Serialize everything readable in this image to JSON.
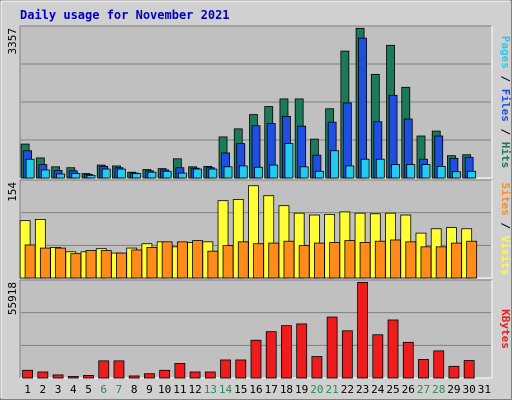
{
  "chart_data": {
    "type": "bar",
    "title": "Daily usage for November 2021",
    "days": [
      "1",
      "2",
      "3",
      "4",
      "5",
      "6",
      "7",
      "8",
      "9",
      "10",
      "11",
      "12",
      "13",
      "14",
      "15",
      "16",
      "17",
      "18",
      "19",
      "20",
      "21",
      "22",
      "23",
      "24",
      "25",
      "26",
      "27",
      "28",
      "29",
      "30",
      "31"
    ],
    "weekend_days": [
      "6",
      "7",
      "13",
      "14",
      "20",
      "21",
      "27",
      "28"
    ],
    "colors": {
      "background": "#d0d0d0",
      "plot": "#c0c0c0",
      "title": "#0000c0",
      "pages": "#1a7a5a",
      "files": "#1f4fe0",
      "hits": "#22ccee",
      "visits": "#ffff33",
      "sites": "#ff8c1a",
      "kbytes": "#ee1c1c",
      "weekend_label": "#2a8a55",
      "weekday_label": "#000000"
    },
    "panels": [
      {
        "name": "hits_files_pages",
        "max_label": "3357",
        "ylim": [
          0,
          3357
        ],
        "legend": [
          {
            "text": "Pages",
            "color": "#22ccee"
          },
          {
            "text": " / ",
            "color": "#000000"
          },
          {
            "text": "Files",
            "color": "#1f4fe0"
          },
          {
            "text": " / ",
            "color": "#000000"
          },
          {
            "text": "Hits",
            "color": "#1a7a5a"
          }
        ],
        "series": [
          {
            "name": "Hits",
            "color": "#1a7a5a",
            "values": [
              760,
              450,
              250,
              230,
              100,
              290,
              270,
              130,
              190,
              210,
              430,
              250,
              260,
              920,
              1100,
              1420,
              1600,
              1770,
              1770,
              870,
              1550,
              2840,
              3350,
              2320,
              2970,
              2030,
              940,
              1050,
              500,
              520,
              null
            ]
          },
          {
            "name": "Files",
            "color": "#1f4fe0",
            "values": [
              610,
              300,
              170,
              160,
              80,
              260,
              230,
              110,
              160,
              180,
              230,
              220,
              230,
              560,
              770,
              1170,
              1220,
              1380,
              1160,
              510,
              1250,
              1680,
              3130,
              1260,
              1850,
              1320,
              420,
              940,
              440,
              460,
              null
            ]
          },
          {
            "name": "Pages",
            "color": "#22ccee",
            "values": [
              420,
              180,
              90,
              100,
              60,
              200,
              200,
              100,
              130,
              150,
              110,
              200,
              200,
              250,
              270,
              240,
              290,
              770,
              250,
              150,
              610,
              270,
              420,
              420,
              300,
              300,
              300,
              260,
              140,
              150,
              null
            ]
          }
        ]
      },
      {
        "name": "visits_sites",
        "max_label": "154",
        "ylim": [
          0,
          154
        ],
        "legend": [
          {
            "text": "Sites",
            "color": "#ff8c1a"
          },
          {
            "text": " / ",
            "color": "#000000"
          },
          {
            "text": "Visits",
            "color": "#ffff33"
          }
        ],
        "series": [
          {
            "name": "Visits",
            "color": "#ffff33",
            "values": [
              92,
              94,
              49,
              42,
              42,
              47,
              40,
              48,
              55,
              58,
              50,
              57,
              58,
              124,
              126,
              148,
              132,
              116,
              104,
              101,
              102,
              106,
              104,
              103,
              104,
              101,
              72,
              79,
              81,
              79,
              null
            ]
          },
          {
            "name": "Sites",
            "color": "#ff8c1a",
            "values": [
              53,
              48,
              48,
              39,
              44,
              44,
              40,
              45,
              49,
              58,
              58,
              60,
              43,
              52,
              58,
              55,
              56,
              59,
              52,
              56,
              57,
              60,
              57,
              59,
              61,
              58,
              50,
              50,
              56,
              59,
              null
            ]
          }
        ]
      },
      {
        "name": "kbytes",
        "max_label": "55918",
        "ylim": [
          0,
          55918
        ],
        "legend": [
          {
            "text": "KBytes",
            "color": "#ee1c1c"
          }
        ],
        "series": [
          {
            "name": "KBytes",
            "color": "#ee1c1c",
            "values": [
              4500,
              3500,
              1800,
              900,
              1500,
              10000,
              10000,
              1200,
              2500,
              4500,
              8500,
              3500,
              3500,
              10500,
              10500,
              22000,
              27000,
              30500,
              31500,
              12500,
              35500,
              27500,
              55700,
              25200,
              33800,
              20800,
              10800,
              15800,
              6800,
              10200,
              null
            ]
          }
        ]
      }
    ]
  }
}
